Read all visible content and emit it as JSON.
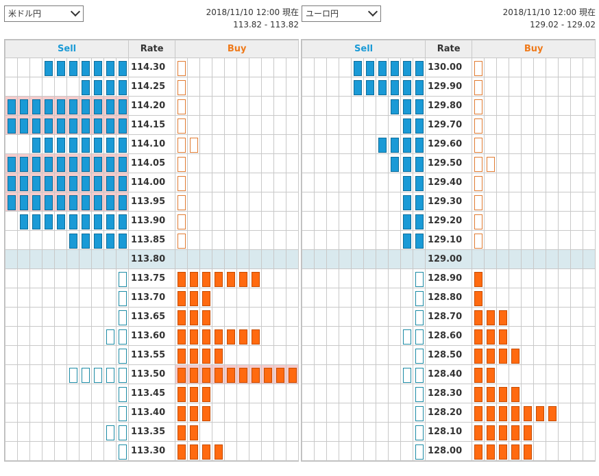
{
  "boards": [
    {
      "pair": "米ドル円",
      "timestamp": "2018/11/10 12:00 現在",
      "bid_ask": "113.82 - 113.82",
      "headers": {
        "sell": "Sell",
        "rate": "Rate",
        "buy": "Buy"
      },
      "rows": [
        {
          "rate": "114.30",
          "sell": 7,
          "buy": 1,
          "sell_type": "order",
          "buy_type": "position",
          "pink": false
        },
        {
          "rate": "114.25",
          "sell": 4,
          "buy": 1,
          "sell_type": "order",
          "buy_type": "position",
          "pink": false
        },
        {
          "rate": "114.20",
          "sell": 10,
          "buy": 1,
          "sell_type": "order",
          "buy_type": "position",
          "pink": true
        },
        {
          "rate": "114.15",
          "sell": 10,
          "buy": 1,
          "sell_type": "order",
          "buy_type": "position",
          "pink": true
        },
        {
          "rate": "114.10",
          "sell": 8,
          "buy": 2,
          "sell_type": "order",
          "buy_type": "position",
          "pink": false
        },
        {
          "rate": "114.05",
          "sell": 10,
          "buy": 1,
          "sell_type": "order",
          "buy_type": "position",
          "pink": true
        },
        {
          "rate": "114.00",
          "sell": 10,
          "buy": 1,
          "sell_type": "order",
          "buy_type": "position",
          "pink": true
        },
        {
          "rate": "113.95",
          "sell": 10,
          "buy": 1,
          "sell_type": "order",
          "buy_type": "position",
          "pink": true
        },
        {
          "rate": "113.90",
          "sell": 9,
          "buy": 1,
          "sell_type": "order",
          "buy_type": "position",
          "pink": false
        },
        {
          "rate": "113.85",
          "sell": 5,
          "buy": 1,
          "sell_type": "order",
          "buy_type": "position",
          "pink": false
        },
        {
          "rate": "113.80",
          "sell": 0,
          "buy": 0,
          "mid": true
        },
        {
          "rate": "113.75",
          "sell": 1,
          "buy": 7,
          "sell_type": "position",
          "buy_type": "order",
          "pink": false
        },
        {
          "rate": "113.70",
          "sell": 1,
          "buy": 3,
          "sell_type": "position",
          "buy_type": "order",
          "pink": false
        },
        {
          "rate": "113.65",
          "sell": 1,
          "buy": 3,
          "sell_type": "position",
          "buy_type": "order",
          "pink": false
        },
        {
          "rate": "113.60",
          "sell": 2,
          "buy": 7,
          "sell_type": "position",
          "buy_type": "order",
          "pink": false
        },
        {
          "rate": "113.55",
          "sell": 1,
          "buy": 4,
          "sell_type": "position",
          "buy_type": "order",
          "pink": false
        },
        {
          "rate": "113.50",
          "sell": 5,
          "buy": 10,
          "sell_type": "position",
          "buy_type": "order",
          "pink": true
        },
        {
          "rate": "113.45",
          "sell": 1,
          "buy": 3,
          "sell_type": "position",
          "buy_type": "order",
          "pink": false
        },
        {
          "rate": "113.40",
          "sell": 1,
          "buy": 3,
          "sell_type": "position",
          "buy_type": "order",
          "pink": false
        },
        {
          "rate": "113.35",
          "sell": 2,
          "buy": 2,
          "sell_type": "position",
          "buy_type": "order",
          "pink": false
        },
        {
          "rate": "113.30",
          "sell": 1,
          "buy": 4,
          "sell_type": "position",
          "buy_type": "order",
          "pink": false
        }
      ]
    },
    {
      "pair": "ユーロ円",
      "timestamp": "2018/11/10 12:00 現在",
      "bid_ask": "129.02 - 129.02",
      "headers": {
        "sell": "Sell",
        "rate": "Rate",
        "buy": "Buy"
      },
      "rows": [
        {
          "rate": "130.00",
          "sell": 6,
          "buy": 1,
          "sell_type": "order",
          "buy_type": "position",
          "pink": false
        },
        {
          "rate": "129.90",
          "sell": 6,
          "buy": 1,
          "sell_type": "order",
          "buy_type": "position",
          "pink": false
        },
        {
          "rate": "129.80",
          "sell": 3,
          "buy": 1,
          "sell_type": "order",
          "buy_type": "position",
          "pink": false
        },
        {
          "rate": "129.70",
          "sell": 2,
          "buy": 1,
          "sell_type": "order",
          "buy_type": "position",
          "pink": false
        },
        {
          "rate": "129.60",
          "sell": 4,
          "buy": 1,
          "sell_type": "order",
          "buy_type": "position",
          "pink": false
        },
        {
          "rate": "129.50",
          "sell": 3,
          "buy": 2,
          "sell_type": "order",
          "buy_type": "position",
          "pink": false
        },
        {
          "rate": "129.40",
          "sell": 2,
          "buy": 1,
          "sell_type": "order",
          "buy_type": "position",
          "pink": false
        },
        {
          "rate": "129.30",
          "sell": 2,
          "buy": 1,
          "sell_type": "order",
          "buy_type": "position",
          "pink": false
        },
        {
          "rate": "129.20",
          "sell": 2,
          "buy": 1,
          "sell_type": "order",
          "buy_type": "position",
          "pink": false
        },
        {
          "rate": "129.10",
          "sell": 2,
          "buy": 1,
          "sell_type": "order",
          "buy_type": "position",
          "pink": false
        },
        {
          "rate": "129.00",
          "sell": 0,
          "buy": 0,
          "mid": true
        },
        {
          "rate": "128.90",
          "sell": 1,
          "buy": 1,
          "sell_type": "position",
          "buy_type": "order",
          "pink": false
        },
        {
          "rate": "128.80",
          "sell": 1,
          "buy": 1,
          "sell_type": "position",
          "buy_type": "order",
          "pink": false
        },
        {
          "rate": "128.70",
          "sell": 1,
          "buy": 3,
          "sell_type": "position",
          "buy_type": "order",
          "pink": false
        },
        {
          "rate": "128.60",
          "sell": 2,
          "buy": 3,
          "sell_type": "position",
          "buy_type": "order",
          "pink": false
        },
        {
          "rate": "128.50",
          "sell": 1,
          "buy": 4,
          "sell_type": "position",
          "buy_type": "order",
          "pink": false
        },
        {
          "rate": "128.40",
          "sell": 2,
          "buy": 2,
          "sell_type": "position",
          "buy_type": "order",
          "pink": false
        },
        {
          "rate": "128.30",
          "sell": 1,
          "buy": 4,
          "sell_type": "position",
          "buy_type": "order",
          "pink": false
        },
        {
          "rate": "128.20",
          "sell": 1,
          "buy": 7,
          "sell_type": "position",
          "buy_type": "order",
          "pink": false
        },
        {
          "rate": "128.10",
          "sell": 1,
          "buy": 5,
          "sell_type": "position",
          "buy_type": "order",
          "pink": false
        },
        {
          "rate": "128.00",
          "sell": 1,
          "buy": 5,
          "sell_type": "position",
          "buy_type": "order",
          "pink": false
        }
      ]
    }
  ],
  "colors": {
    "sell_order": "#1a9ad6",
    "buy_order": "#ff6a10",
    "mid_row": "#d9e9ee",
    "highlight_row": "#f6cccc"
  }
}
